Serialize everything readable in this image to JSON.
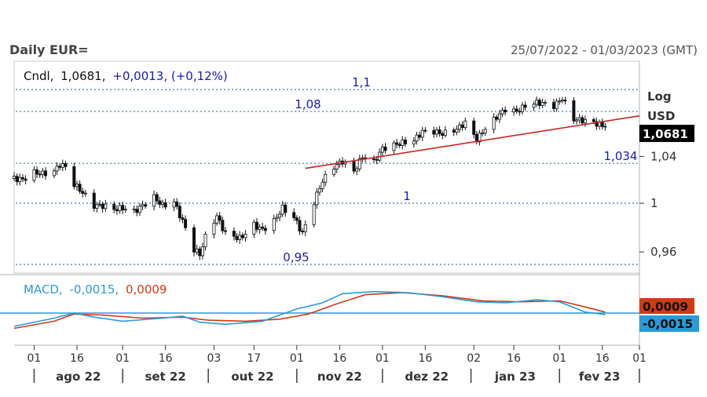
{
  "header": {
    "title": "Daily EUR=",
    "date_range": "25/07/2022 - 01/03/2023 (GMT)"
  },
  "legend": {
    "main_prefix": "Cndl,",
    "main_close": "1,0681,",
    "main_change": "+0,0013, (+0,12%)",
    "macd_label": "MACD,",
    "macd_value": "-0,0015,",
    "signal_value": "0,0009"
  },
  "axis": {
    "scale_label": "Log",
    "currency_label": "USD",
    "y_ticks": [
      "1,04",
      "1",
      "0,96"
    ],
    "current_price_tag": "1,0681",
    "macd_tag": "-0,0015",
    "signal_tag": "0,0009",
    "x_day_labels": [
      "01",
      "16",
      "01",
      "16",
      "03",
      "17",
      "01",
      "16",
      "01",
      "16",
      "02",
      "16",
      "01",
      "16",
      "01"
    ],
    "x_month_labels": [
      "ago 22",
      "set 22",
      "out 22",
      "nov 22",
      "dez 22",
      "jan 23",
      "fev 23"
    ]
  },
  "levels": [
    {
      "label": "1,1",
      "value": 1.1
    },
    {
      "label": "1,08",
      "value": 1.08
    },
    {
      "label": "1,034",
      "value": 1.034
    },
    {
      "label": "1",
      "value": 1.0
    },
    {
      "label": "0,95",
      "value": 0.95
    }
  ],
  "colors": {
    "candle": "#111111",
    "level_line": "#3a78b8",
    "level_text": "#1a1aa8",
    "trendline": "#cc2222",
    "macd": "#2a9ad8",
    "signal": "#d03a14",
    "zero_line": "#2a9ad8",
    "price_tag_bg": "#000000",
    "macd_tag_bg": "#2a9ad8",
    "signal_tag_bg": "#d03a14"
  },
  "chart_data": {
    "type": "candlestick",
    "scale": "log",
    "ylim": [
      0.945,
      1.125
    ],
    "x_range": [
      "2022-07-25",
      "2023-03-01"
    ],
    "close_series": [
      [
        "2022-07-25",
        1.021
      ],
      [
        "2022-07-28",
        1.02
      ],
      [
        "2022-08-01",
        1.026
      ],
      [
        "2022-08-04",
        1.025
      ],
      [
        "2022-08-08",
        1.027
      ],
      [
        "2022-08-10",
        1.033
      ],
      [
        "2022-08-12",
        1.031
      ],
      [
        "2022-08-15",
        1.016
      ],
      [
        "2022-08-18",
        1.009
      ],
      [
        "2022-08-22",
        0.998
      ],
      [
        "2022-08-25",
        0.998
      ],
      [
        "2022-08-29",
        0.995
      ],
      [
        "2022-09-01",
        0.996
      ],
      [
        "2022-09-05",
        0.993
      ],
      [
        "2022-09-08",
        0.998
      ],
      [
        "2022-09-12",
        1.005
      ],
      [
        "2022-09-15",
        0.998
      ],
      [
        "2022-09-19",
        1.001
      ],
      [
        "2022-09-22",
        0.985
      ],
      [
        "2022-09-26",
        0.962
      ],
      [
        "2022-09-28",
        0.958
      ],
      [
        "2022-10-01",
        0.979
      ],
      [
        "2022-10-04",
        0.989
      ],
      [
        "2022-10-07",
        0.975
      ],
      [
        "2022-10-12",
        0.971
      ],
      [
        "2022-10-14",
        0.975
      ],
      [
        "2022-10-17",
        0.982
      ],
      [
        "2022-10-20",
        0.978
      ],
      [
        "2022-10-24",
        0.985
      ],
      [
        "2022-10-27",
        0.996
      ],
      [
        "2022-10-31",
        0.988
      ],
      [
        "2022-11-03",
        0.975
      ],
      [
        "2022-11-07",
        1.001
      ],
      [
        "2022-11-10",
        1.019
      ],
      [
        "2022-11-14",
        1.031
      ],
      [
        "2022-11-17",
        1.036
      ],
      [
        "2022-11-21",
        1.027
      ],
      [
        "2022-11-24",
        1.04
      ],
      [
        "2022-11-28",
        1.035
      ],
      [
        "2022-12-01",
        1.047
      ],
      [
        "2022-12-05",
        1.05
      ],
      [
        "2022-12-08",
        1.052
      ],
      [
        "2022-12-12",
        1.054
      ],
      [
        "2022-12-15",
        1.062
      ],
      [
        "2022-12-19",
        1.062
      ],
      [
        "2022-12-22",
        1.06
      ],
      [
        "2022-12-27",
        1.064
      ],
      [
        "2022-12-30",
        1.07
      ],
      [
        "2023-01-03",
        1.055
      ],
      [
        "2023-01-06",
        1.065
      ],
      [
        "2023-01-10",
        1.075
      ],
      [
        "2023-01-13",
        1.082
      ],
      [
        "2023-01-17",
        1.08
      ],
      [
        "2023-01-20",
        1.085
      ],
      [
        "2023-01-24",
        1.088
      ],
      [
        "2023-01-27",
        1.087
      ],
      [
        "2023-01-30",
        1.085
      ],
      [
        "2023-02-02",
        1.092
      ],
      [
        "2023-02-06",
        1.073
      ],
      [
        "2023-02-09",
        1.072
      ],
      [
        "2023-02-13",
        1.07
      ],
      [
        "2023-02-16",
        1.067
      ],
      [
        "2023-02-17",
        1.068
      ]
    ],
    "last_close": 1.0681,
    "trendline": {
      "from": [
        "2022-11-04",
        1.0297
      ],
      "to": [
        "2023-03-01",
        1.076
      ]
    },
    "macd": {
      "ylim": [
        -0.03,
        0.03
      ],
      "macd_series": [
        [
          "2022-07-25",
          -0.013
        ],
        [
          "2022-08-08",
          -0.005
        ],
        [
          "2022-08-15",
          0.0
        ],
        [
          "2022-08-22",
          -0.004
        ],
        [
          "2022-09-01",
          -0.008
        ],
        [
          "2022-09-15",
          -0.005
        ],
        [
          "2022-09-22",
          -0.003
        ],
        [
          "2022-09-28",
          -0.009
        ],
        [
          "2022-10-07",
          -0.011
        ],
        [
          "2022-10-20",
          -0.008
        ],
        [
          "2022-11-01",
          0.004
        ],
        [
          "2022-11-10",
          0.01
        ],
        [
          "2022-11-17",
          0.019
        ],
        [
          "2022-11-28",
          0.021
        ],
        [
          "2022-12-10",
          0.02
        ],
        [
          "2022-12-22",
          0.016
        ],
        [
          "2023-01-03",
          0.011
        ],
        [
          "2023-01-13",
          0.01
        ],
        [
          "2023-01-24",
          0.013
        ],
        [
          "2023-02-01",
          0.011
        ],
        [
          "2023-02-10",
          0.001
        ],
        [
          "2023-02-17",
          -0.0015
        ]
      ],
      "signal_series": [
        [
          "2022-07-25",
          -0.015
        ],
        [
          "2022-08-08",
          -0.008
        ],
        [
          "2022-08-15",
          -0.001
        ],
        [
          "2022-08-25",
          -0.002
        ],
        [
          "2022-09-08",
          -0.005
        ],
        [
          "2022-09-22",
          -0.004
        ],
        [
          "2022-10-01",
          -0.007
        ],
        [
          "2022-10-14",
          -0.008
        ],
        [
          "2022-10-26",
          -0.006
        ],
        [
          "2022-11-05",
          -0.001
        ],
        [
          "2022-11-15",
          0.009
        ],
        [
          "2022-11-25",
          0.018
        ],
        [
          "2022-12-08",
          0.02
        ],
        [
          "2022-12-22",
          0.017
        ],
        [
          "2023-01-05",
          0.012
        ],
        [
          "2023-01-18",
          0.011
        ],
        [
          "2023-02-01",
          0.012
        ],
        [
          "2023-02-10",
          0.006
        ],
        [
          "2023-02-17",
          0.0009
        ]
      ],
      "last_macd": -0.0015,
      "last_signal": 0.0009
    }
  }
}
